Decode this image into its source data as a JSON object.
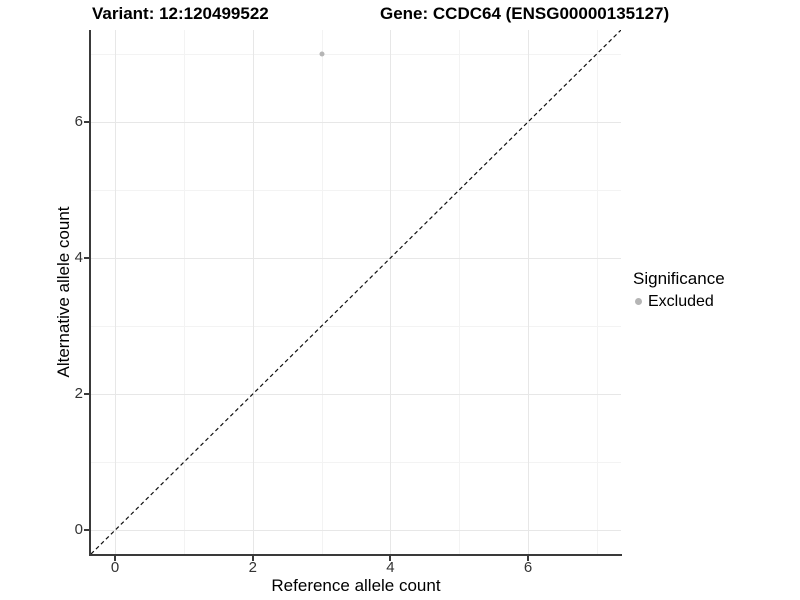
{
  "chart_data": {
    "type": "scatter",
    "titles": {
      "left": "Variant: 12:120499522",
      "right": "Gene: CCDC64 (ENSG00000135127)"
    },
    "xlabel": "Reference allele count",
    "ylabel": "Alternative allele count",
    "xlim": [
      -0.35,
      7.35
    ],
    "ylim": [
      -0.35,
      7.35
    ],
    "x_major_ticks": [
      0,
      2,
      4,
      6
    ],
    "y_major_ticks": [
      0,
      2,
      4,
      6
    ],
    "x_minor_gridlines": [
      1,
      3,
      5,
      7
    ],
    "y_minor_gridlines": [
      1,
      3,
      5,
      7
    ],
    "grid": "major and minor gridlines on white background",
    "points": [
      {
        "x": 3,
        "y": 7,
        "significance": "Excluded"
      }
    ],
    "identity_line": {
      "equation": "y = x",
      "style": "dashed",
      "color": "#111111"
    },
    "legend": {
      "title": "Significance",
      "position": "right",
      "items": [
        {
          "label": "Excluded",
          "color": "#b5b5b5",
          "marker": "circle"
        }
      ]
    }
  },
  "colors": {
    "background": "#ffffff",
    "point": "#b5b5b5",
    "axis_line": "#3a3a3a",
    "tick_label": "#333333",
    "grid_major": "#e7e7e7",
    "grid_minor": "#f3f3f3",
    "title_text": "#000000"
  }
}
